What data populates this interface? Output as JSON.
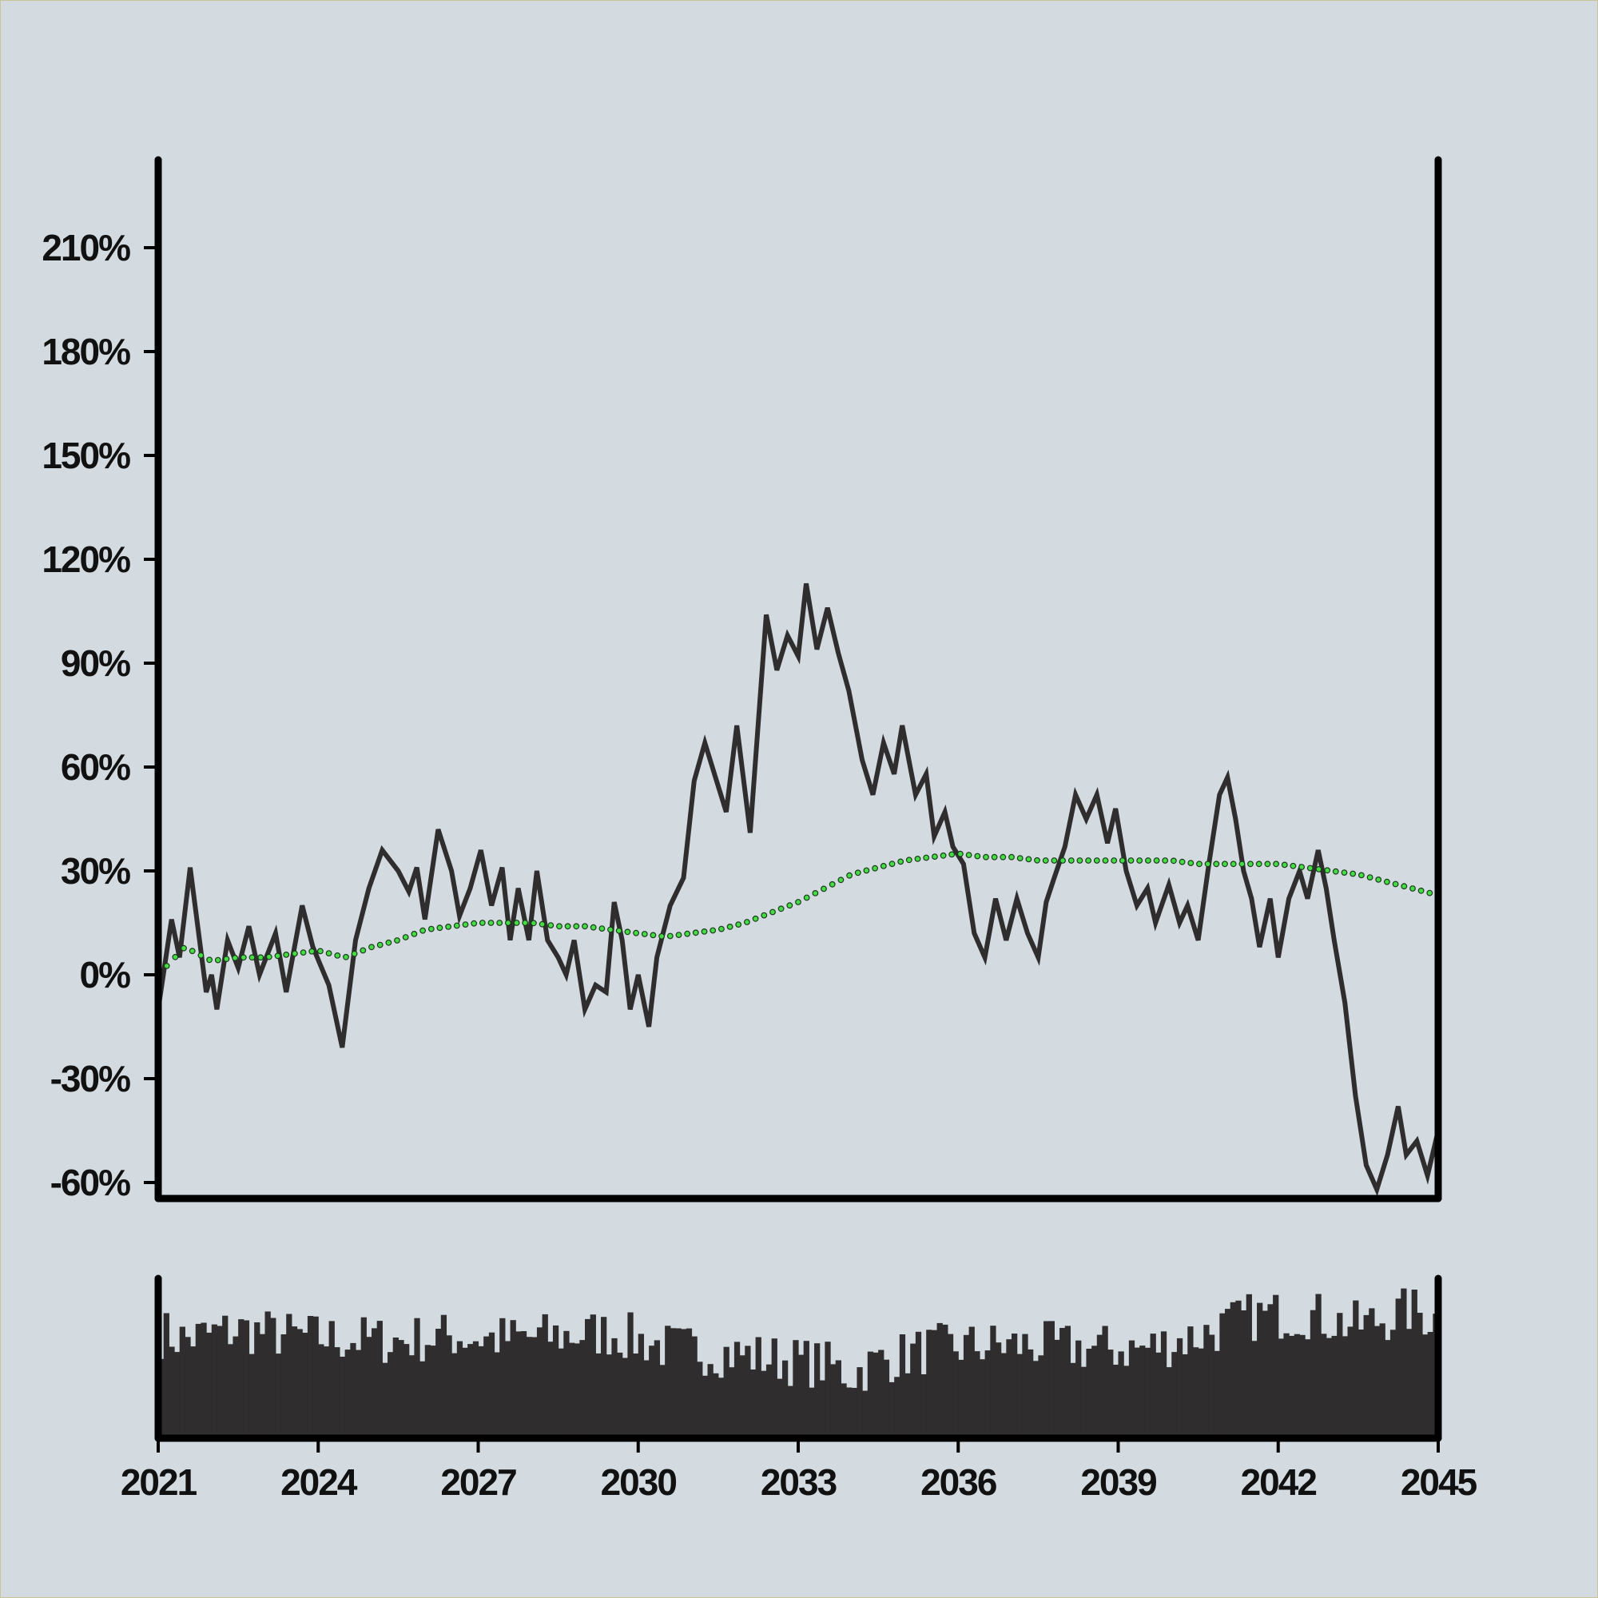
{
  "chart_data": [
    {
      "type": "line",
      "panel": "price",
      "xlim": [
        2021,
        2045
      ],
      "ylim": [
        -62,
        230
      ],
      "y_ticks": [
        -60,
        -30,
        0,
        30,
        60,
        90,
        120,
        150,
        180,
        210
      ],
      "y_tick_labels": [
        "-60%",
        "-30%",
        "0%",
        "30%",
        "60%",
        "90%",
        "120%",
        "150%",
        "180%",
        "210%"
      ],
      "grid": false,
      "series": [
        {
          "style": "solid",
          "color": "#2f2d2e",
          "points": [
            [
              2021.0,
              -10
            ],
            [
              2021.25,
              16
            ],
            [
              2021.4,
              5
            ],
            [
              2021.6,
              31
            ],
            [
              2021.9,
              -5
            ],
            [
              2022.0,
              0
            ],
            [
              2022.1,
              -10
            ],
            [
              2022.3,
              10
            ],
            [
              2022.5,
              2
            ],
            [
              2022.7,
              14
            ],
            [
              2022.9,
              0
            ],
            [
              2023.2,
              12
            ],
            [
              2023.4,
              -5
            ],
            [
              2023.7,
              20
            ],
            [
              2023.9,
              8
            ],
            [
              2024.2,
              -3
            ],
            [
              2024.45,
              -21
            ],
            [
              2024.7,
              10
            ],
            [
              2024.95,
              25
            ],
            [
              2025.2,
              36
            ],
            [
              2025.5,
              30
            ],
            [
              2025.7,
              24
            ],
            [
              2025.85,
              31
            ],
            [
              2026.0,
              16
            ],
            [
              2026.25,
              42
            ],
            [
              2026.5,
              30
            ],
            [
              2026.65,
              17
            ],
            [
              2026.85,
              25
            ],
            [
              2027.05,
              36
            ],
            [
              2027.25,
              20
            ],
            [
              2027.45,
              31
            ],
            [
              2027.6,
              10
            ],
            [
              2027.75,
              25
            ],
            [
              2027.95,
              10
            ],
            [
              2028.1,
              30
            ],
            [
              2028.3,
              10
            ],
            [
              2028.5,
              5
            ],
            [
              2028.65,
              0
            ],
            [
              2028.8,
              10
            ],
            [
              2029.0,
              -10
            ],
            [
              2029.2,
              -3
            ],
            [
              2029.4,
              -5
            ],
            [
              2029.55,
              21
            ],
            [
              2029.7,
              10
            ],
            [
              2029.85,
              -10
            ],
            [
              2030.0,
              0
            ],
            [
              2030.2,
              -15
            ],
            [
              2030.35,
              5
            ],
            [
              2030.6,
              20
            ],
            [
              2030.85,
              28
            ],
            [
              2031.05,
              56
            ],
            [
              2031.25,
              67
            ],
            [
              2031.45,
              57
            ],
            [
              2031.65,
              47
            ],
            [
              2031.85,
              72
            ],
            [
              2032.1,
              41
            ],
            [
              2032.4,
              104
            ],
            [
              2032.6,
              88
            ],
            [
              2032.8,
              98
            ],
            [
              2033.0,
              92
            ],
            [
              2033.15,
              113
            ],
            [
              2033.35,
              94
            ],
            [
              2033.55,
              106
            ],
            [
              2033.75,
              93
            ],
            [
              2033.95,
              82
            ],
            [
              2034.2,
              62
            ],
            [
              2034.4,
              52
            ],
            [
              2034.6,
              67
            ],
            [
              2034.8,
              58
            ],
            [
              2034.95,
              72
            ],
            [
              2035.2,
              52
            ],
            [
              2035.4,
              58
            ],
            [
              2035.55,
              40
            ],
            [
              2035.75,
              47
            ],
            [
              2035.9,
              37
            ],
            [
              2036.1,
              32
            ],
            [
              2036.3,
              12
            ],
            [
              2036.5,
              5
            ],
            [
              2036.7,
              22
            ],
            [
              2036.9,
              10
            ],
            [
              2037.1,
              22
            ],
            [
              2037.3,
              12
            ],
            [
              2037.5,
              5
            ],
            [
              2037.65,
              21
            ],
            [
              2037.8,
              28
            ],
            [
              2038.0,
              37
            ],
            [
              2038.2,
              52
            ],
            [
              2038.4,
              45
            ],
            [
              2038.6,
              52
            ],
            [
              2038.8,
              38
            ],
            [
              2038.95,
              48
            ],
            [
              2039.15,
              30
            ],
            [
              2039.35,
              20
            ],
            [
              2039.55,
              25
            ],
            [
              2039.7,
              15
            ],
            [
              2039.95,
              26
            ],
            [
              2040.15,
              15
            ],
            [
              2040.3,
              20
            ],
            [
              2040.5,
              10
            ],
            [
              2040.7,
              32
            ],
            [
              2040.9,
              52
            ],
            [
              2041.05,
              57
            ],
            [
              2041.2,
              45
            ],
            [
              2041.35,
              30
            ],
            [
              2041.5,
              22
            ],
            [
              2041.65,
              8
            ],
            [
              2041.85,
              22
            ],
            [
              2042.0,
              5
            ],
            [
              2042.2,
              22
            ],
            [
              2042.4,
              30
            ],
            [
              2042.55,
              22
            ],
            [
              2042.75,
              36
            ],
            [
              2042.9,
              25
            ],
            [
              2043.05,
              10
            ],
            [
              2043.25,
              -8
            ],
            [
              2043.45,
              -35
            ],
            [
              2043.65,
              -55
            ],
            [
              2043.85,
              -62
            ],
            [
              2044.05,
              -52
            ],
            [
              2044.25,
              -38
            ],
            [
              2044.4,
              -52
            ],
            [
              2044.6,
              -48
            ],
            [
              2044.8,
              -58
            ],
            [
              2045.0,
              -45
            ]
          ]
        },
        {
          "style": "dotted-circles",
          "color": "#44dd44",
          "points": [
            [
              2021.0,
              0
            ],
            [
              2021.5,
              8
            ],
            [
              2022.0,
              4
            ],
            [
              2022.5,
              5
            ],
            [
              2023.0,
              5
            ],
            [
              2023.5,
              6
            ],
            [
              2024.0,
              7
            ],
            [
              2024.5,
              5
            ],
            [
              2025.0,
              8
            ],
            [
              2025.5,
              10
            ],
            [
              2026.0,
              13
            ],
            [
              2026.5,
              14
            ],
            [
              2027.0,
              15
            ],
            [
              2027.5,
              15
            ],
            [
              2028.0,
              15
            ],
            [
              2028.5,
              14
            ],
            [
              2029.0,
              14
            ],
            [
              2029.5,
              13
            ],
            [
              2030.0,
              12
            ],
            [
              2030.5,
              11
            ],
            [
              2031.0,
              12
            ],
            [
              2031.5,
              13
            ],
            [
              2032.0,
              15
            ],
            [
              2032.5,
              18
            ],
            [
              2033.0,
              21
            ],
            [
              2033.5,
              25
            ],
            [
              2034.0,
              29
            ],
            [
              2034.5,
              31
            ],
            [
              2035.0,
              33
            ],
            [
              2035.5,
              34
            ],
            [
              2036.0,
              35
            ],
            [
              2036.5,
              34
            ],
            [
              2037.0,
              34
            ],
            [
              2037.5,
              33
            ],
            [
              2038.0,
              33
            ],
            [
              2038.5,
              33
            ],
            [
              2039.0,
              33
            ],
            [
              2039.5,
              33
            ],
            [
              2040.0,
              33
            ],
            [
              2040.5,
              32
            ],
            [
              2041.0,
              32
            ],
            [
              2041.5,
              32
            ],
            [
              2042.0,
              32
            ],
            [
              2042.5,
              31
            ],
            [
              2043.0,
              30
            ],
            [
              2043.5,
              29
            ],
            [
              2044.0,
              27
            ],
            [
              2044.5,
              25
            ],
            [
              2045.0,
              23
            ]
          ]
        }
      ]
    },
    {
      "type": "bar",
      "panel": "volume",
      "xlim": [
        2021,
        2045
      ],
      "x_ticks": [
        2021,
        2024,
        2027,
        2030,
        2033,
        2036,
        2039,
        2042,
        2045
      ],
      "x_tick_labels": [
        "2021",
        "2024",
        "2027",
        "2030",
        "2033",
        "2036",
        "2039",
        "2042",
        "2045"
      ],
      "grid": false,
      "color": "#2f2d2e",
      "bar_count": 240,
      "envelope": [
        [
          2021.0,
          0.66
        ],
        [
          2021.5,
          0.62
        ],
        [
          2022.5,
          0.68
        ],
        [
          2023.5,
          0.64
        ],
        [
          2024.5,
          0.62
        ],
        [
          2025.5,
          0.61
        ],
        [
          2026.5,
          0.64
        ],
        [
          2027.5,
          0.62
        ],
        [
          2028.5,
          0.64
        ],
        [
          2029.5,
          0.66
        ],
        [
          2030.5,
          0.57
        ],
        [
          2031.5,
          0.54
        ],
        [
          2032.5,
          0.5
        ],
        [
          2033.5,
          0.46
        ],
        [
          2034.0,
          0.4
        ],
        [
          2034.5,
          0.48
        ],
        [
          2035.5,
          0.56
        ],
        [
          2036.5,
          0.58
        ],
        [
          2037.5,
          0.58
        ],
        [
          2038.5,
          0.56
        ],
        [
          2039.5,
          0.56
        ],
        [
          2040.5,
          0.64
        ],
        [
          2041.5,
          0.76
        ],
        [
          2042.5,
          0.78
        ],
        [
          2043.5,
          0.7
        ],
        [
          2044.5,
          0.8
        ],
        [
          2045.0,
          0.74
        ]
      ]
    }
  ]
}
